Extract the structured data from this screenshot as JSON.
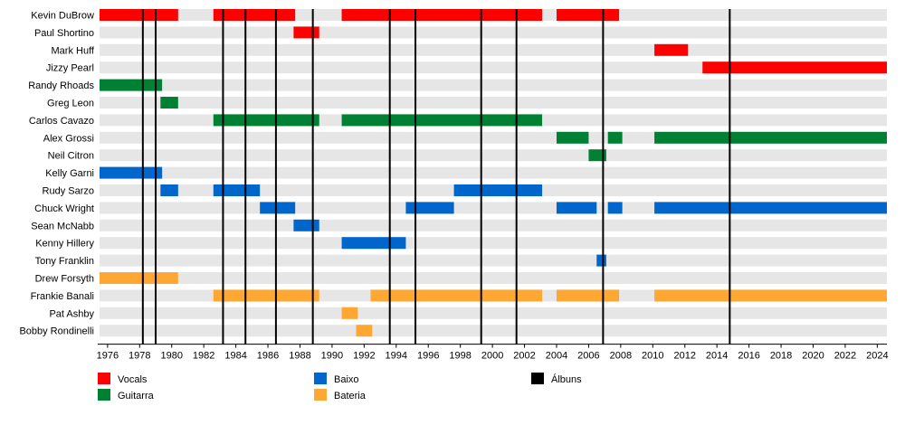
{
  "chart_data": {
    "type": "timeline",
    "x_range": [
      1975.5,
      2024.6
    ],
    "x_ticks": [
      "1976",
      "1978",
      "1980",
      "1982",
      "1984",
      "1986",
      "1988",
      "1990",
      "1992",
      "1994",
      "1996",
      "1998",
      "2000",
      "2002",
      "2004",
      "2006",
      "2008",
      "2010",
      "2012",
      "2014",
      "2016",
      "2018",
      "2020",
      "2022",
      "2024"
    ],
    "members": [
      {
        "name": "Kevin DuBrow",
        "bars": [
          {
            "role": "vocals",
            "start": 1975.5,
            "end": 1980.4
          },
          {
            "role": "vocals",
            "start": 1982.6,
            "end": 1987.7
          },
          {
            "role": "vocals",
            "start": 1990.6,
            "end": 2003.1
          },
          {
            "role": "vocals",
            "start": 2004.0,
            "end": 2007.9
          }
        ]
      },
      {
        "name": "Paul Shortino",
        "bars": [
          {
            "role": "vocals",
            "start": 1987.6,
            "end": 1989.2
          }
        ]
      },
      {
        "name": "Mark Huff",
        "bars": [
          {
            "role": "vocals",
            "start": 2010.1,
            "end": 2012.2
          }
        ]
      },
      {
        "name": "Jizzy Pearl",
        "bars": [
          {
            "role": "vocals",
            "start": 2013.1,
            "end": 2024.6
          }
        ]
      },
      {
        "name": "Randy Rhoads",
        "bars": [
          {
            "role": "guitar",
            "start": 1975.5,
            "end": 1979.4
          }
        ]
      },
      {
        "name": "Greg Leon",
        "bars": [
          {
            "role": "guitar",
            "start": 1979.3,
            "end": 1980.4
          }
        ]
      },
      {
        "name": "Carlos Cavazo",
        "bars": [
          {
            "role": "guitar",
            "start": 1982.6,
            "end": 1989.2
          },
          {
            "role": "guitar",
            "start": 1990.6,
            "end": 2003.1
          }
        ]
      },
      {
        "name": "Alex Grossi",
        "bars": [
          {
            "role": "guitar",
            "start": 2004.0,
            "end": 2006.0
          },
          {
            "role": "guitar",
            "start": 2007.2,
            "end": 2008.1
          },
          {
            "role": "guitar",
            "start": 2010.1,
            "end": 2024.6
          }
        ]
      },
      {
        "name": "Neil Citron",
        "bars": [
          {
            "role": "guitar",
            "start": 2006.0,
            "end": 2007.1
          }
        ]
      },
      {
        "name": "Kelly Garni",
        "bars": [
          {
            "role": "bass",
            "start": 1975.5,
            "end": 1979.4
          }
        ]
      },
      {
        "name": "Rudy Sarzo",
        "bars": [
          {
            "role": "bass",
            "start": 1979.3,
            "end": 1980.4
          },
          {
            "role": "bass",
            "start": 1982.6,
            "end": 1985.5
          },
          {
            "role": "bass",
            "start": 1997.6,
            "end": 2003.1
          }
        ]
      },
      {
        "name": "Chuck Wright",
        "bars": [
          {
            "role": "bass",
            "start": 1985.5,
            "end": 1987.7
          },
          {
            "role": "bass",
            "start": 1994.6,
            "end": 1997.6
          },
          {
            "role": "bass",
            "start": 2004.0,
            "end": 2006.5
          },
          {
            "role": "bass",
            "start": 2007.2,
            "end": 2008.1
          },
          {
            "role": "bass",
            "start": 2010.1,
            "end": 2024.6
          }
        ]
      },
      {
        "name": "Sean McNabb",
        "bars": [
          {
            "role": "bass",
            "start": 1987.6,
            "end": 1989.2
          }
        ]
      },
      {
        "name": "Kenny Hillery",
        "bars": [
          {
            "role": "bass",
            "start": 1990.6,
            "end": 1994.6
          }
        ]
      },
      {
        "name": "Tony Franklin",
        "bars": [
          {
            "role": "bass",
            "start": 2006.5,
            "end": 2007.1
          }
        ]
      },
      {
        "name": "Drew Forsyth",
        "bars": [
          {
            "role": "drums",
            "start": 1975.5,
            "end": 1980.4
          }
        ]
      },
      {
        "name": "Frankie Banali",
        "bars": [
          {
            "role": "drums",
            "start": 1982.6,
            "end": 1989.2
          },
          {
            "role": "drums",
            "start": 1992.4,
            "end": 2003.1
          },
          {
            "role": "drums",
            "start": 2004.0,
            "end": 2007.9
          },
          {
            "role": "drums",
            "start": 2010.1,
            "end": 2024.6
          }
        ]
      },
      {
        "name": "Pat Ashby",
        "bars": [
          {
            "role": "drums",
            "start": 1990.6,
            "end": 1991.6
          }
        ]
      },
      {
        "name": "Bobby Rondinelli",
        "bars": [
          {
            "role": "drums",
            "start": 1991.5,
            "end": 1992.5
          }
        ]
      }
    ],
    "album_lines": [
      1978.2,
      1979.0,
      1983.2,
      1984.6,
      1986.5,
      1988.8,
      1993.6,
      1995.2,
      1999.3,
      2001.5,
      2006.9,
      2014.8
    ],
    "legend": [
      {
        "key": "vocals",
        "label": "Vocals"
      },
      {
        "key": "guitar",
        "label": "Guitarra"
      },
      {
        "key": "bass",
        "label": "Baixo"
      },
      {
        "key": "drums",
        "label": "Bateria"
      },
      {
        "key": "albums",
        "label": "Álbuns"
      }
    ],
    "colors": {
      "vocals": "#ff0000",
      "guitar": "#008033",
      "bass": "#0066cc",
      "drums": "#ffa733",
      "albums": "#000000",
      "row_stripe": "#e6e6e6"
    }
  }
}
